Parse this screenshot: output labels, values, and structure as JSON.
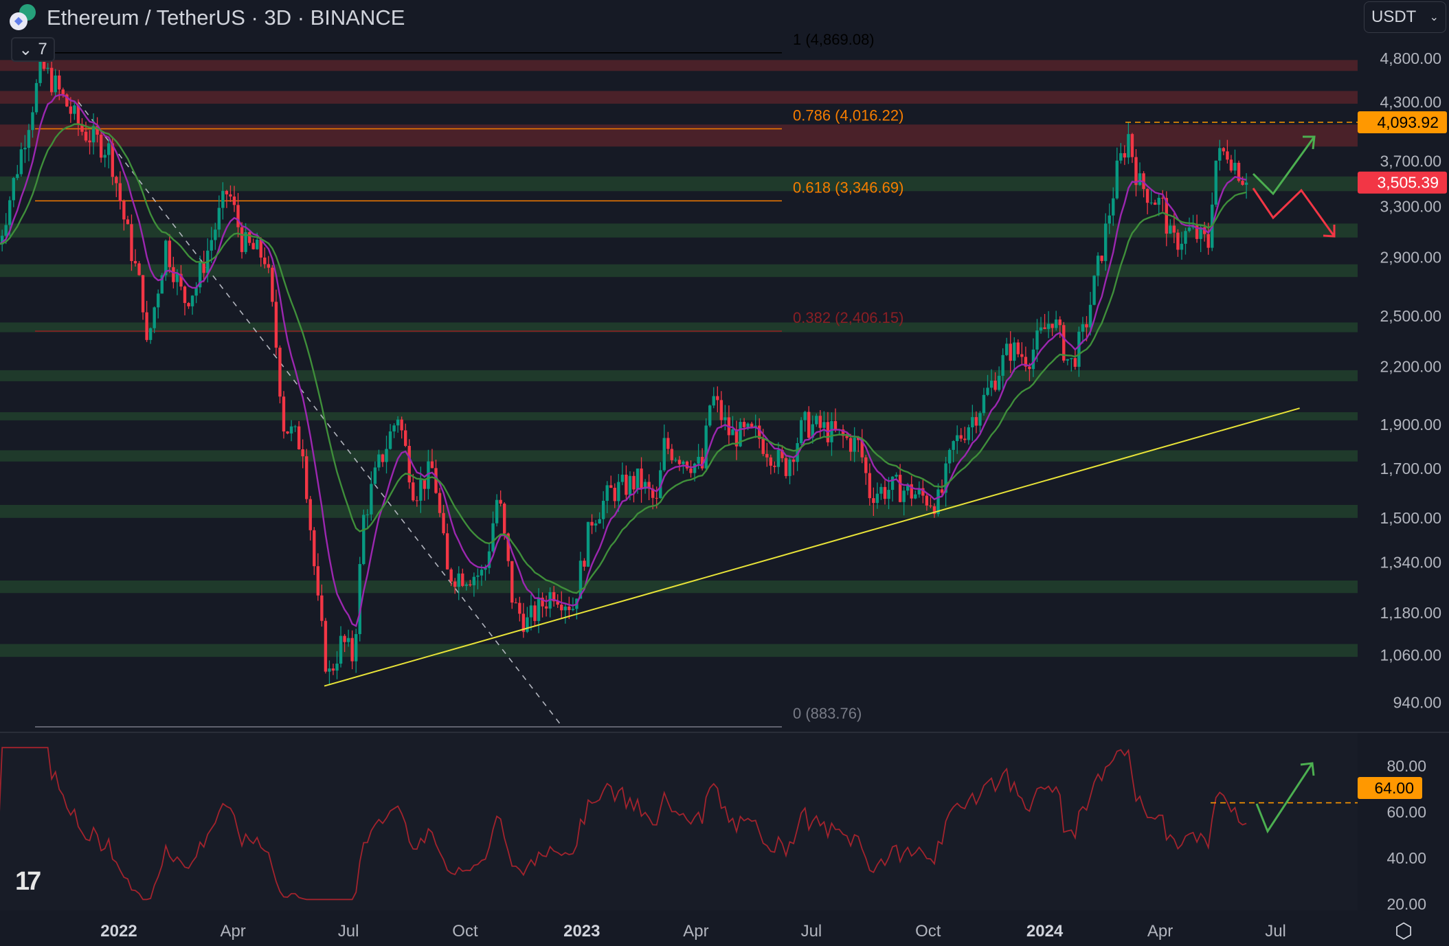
{
  "header": {
    "title": "Ethereum / TetherUS · 3D · BINANCE",
    "collapse_count": "7",
    "currency": "USDT"
  },
  "colors": {
    "background": "#161a25",
    "up": "#089981",
    "down": "#f23645",
    "ema_fast": "#9c27b0",
    "ema_slow": "#3f8f3a",
    "rsi": "#a3232d",
    "resistance_zone": "#4a2129",
    "support_zone": "#1f3a2b",
    "trendline": "#e8e338",
    "fib_786": "#f57c00",
    "fib_618": "#f57c00"
  },
  "chart_data": {
    "type": "candlestick",
    "title": "Ethereum / TetherUS · 3D · BINANCE",
    "scale": "log",
    "y_ticks": [
      "4,800.00",
      "4,300.00",
      "3,700.00",
      "3,300.00",
      "2,900.00",
      "2,500.00",
      "2,200.00",
      "1,900.00",
      "1,700.00",
      "1,500.00",
      "1,340.00",
      "1,180.00",
      "1,060.00",
      "940.00"
    ],
    "y_tick_values": [
      4800,
      4300,
      3700,
      3300,
      2900,
      2500,
      2200,
      1900,
      1700,
      1500,
      1340,
      1180,
      1060,
      940
    ],
    "x_ticks": [
      {
        "label": "2022",
        "date": "2022-01-01",
        "bold": true
      },
      {
        "label": "Apr",
        "date": "2022-04-01"
      },
      {
        "label": "Jul",
        "date": "2022-07-01"
      },
      {
        "label": "Oct",
        "date": "2022-10-01"
      },
      {
        "label": "2023",
        "date": "2023-01-01",
        "bold": true
      },
      {
        "label": "Apr",
        "date": "2023-04-01"
      },
      {
        "label": "Jul",
        "date": "2023-07-01"
      },
      {
        "label": "Oct",
        "date": "2023-10-01"
      },
      {
        "label": "2024",
        "date": "2024-01-01",
        "bold": true
      },
      {
        "label": "Apr",
        "date": "2024-04-01"
      },
      {
        "label": "Jul",
        "date": "2024-07-01"
      }
    ],
    "approx_closes": [
      [
        "2021-09-28",
        3000
      ],
      [
        "2021-10-12",
        3600
      ],
      [
        "2021-11-01",
        4700
      ],
      [
        "2021-11-11",
        4500
      ],
      [
        "2021-12-03",
        4000
      ],
      [
        "2021-12-25",
        3800
      ],
      [
        "2022-01-05",
        3200
      ],
      [
        "2022-01-20",
        2600
      ],
      [
        "2022-01-23",
        2300
      ],
      [
        "2022-02-07",
        3000
      ],
      [
        "2022-02-21",
        2600
      ],
      [
        "2022-03-03",
        2700
      ],
      [
        "2022-03-17",
        3100
      ],
      [
        "2022-03-28",
        3450
      ],
      [
        "2022-04-09",
        3000
      ],
      [
        "2022-04-27",
        2900
      ],
      [
        "2022-05-04",
        2400
      ],
      [
        "2022-05-11",
        1900
      ],
      [
        "2022-05-26",
        1800
      ],
      [
        "2022-06-07",
        1200
      ],
      [
        "2022-06-15",
        1000
      ],
      [
        "2022-06-26",
        1100
      ],
      [
        "2022-07-05",
        1050
      ],
      [
        "2022-07-13",
        1500
      ],
      [
        "2022-07-24",
        1700
      ],
      [
        "2022-08-09",
        1950
      ],
      [
        "2022-08-22",
        1600
      ],
      [
        "2022-09-06",
        1700
      ],
      [
        "2022-09-17",
        1300
      ],
      [
        "2022-10-05",
        1300
      ],
      [
        "2022-10-16",
        1300
      ],
      [
        "2022-10-27",
        1600
      ],
      [
        "2022-11-08",
        1200
      ],
      [
        "2022-11-19",
        1150
      ],
      [
        "2022-12-10",
        1250
      ],
      [
        "2022-12-25",
        1200
      ],
      [
        "2023-01-09",
        1500
      ],
      [
        "2023-01-24",
        1600
      ],
      [
        "2023-02-15",
        1650
      ],
      [
        "2023-03-01",
        1550
      ],
      [
        "2023-03-07",
        1800
      ],
      [
        "2023-04-06",
        1700
      ],
      [
        "2023-04-13",
        2050
      ],
      [
        "2023-04-28",
        1850
      ],
      [
        "2023-05-19",
        1850
      ],
      [
        "2023-06-10",
        1700
      ],
      [
        "2023-06-25",
        1900
      ],
      [
        "2023-07-10",
        1880
      ],
      [
        "2023-08-08",
        1800
      ],
      [
        "2023-08-16",
        1600
      ],
      [
        "2023-09-07",
        1620
      ],
      [
        "2023-09-28",
        1580
      ],
      [
        "2023-10-10",
        1560
      ],
      [
        "2023-10-21",
        1800
      ],
      [
        "2023-11-12",
        2000
      ],
      [
        "2023-12-04",
        2300
      ],
      [
        "2023-12-19",
        2250
      ],
      [
        "2024-01-07",
        2500
      ],
      [
        "2024-01-21",
        2200
      ],
      [
        "2024-02-01",
        2400
      ],
      [
        "2024-02-16",
        3000
      ],
      [
        "2024-02-27",
        3600
      ],
      [
        "2024-03-07",
        3950
      ],
      [
        "2024-03-15",
        3500
      ],
      [
        "2024-04-03",
        3300
      ],
      [
        "2024-04-10",
        3000
      ],
      [
        "2024-04-25",
        3100
      ],
      [
        "2024-05-09",
        3000
      ],
      [
        "2024-05-14",
        3700
      ],
      [
        "2024-05-24",
        3800
      ],
      [
        "2024-06-08",
        3505.39
      ]
    ],
    "last_price": "3,505.39",
    "marked_high": "4,093.92",
    "fib_levels": [
      {
        "label": "1 (4,869.08)",
        "price": 4869.08,
        "color": "#000000"
      },
      {
        "label": "0.786 (4,016.22)",
        "price": 4016.22,
        "color": "#f57c00"
      },
      {
        "label": "0.618 (3,346.69)",
        "price": 3346.69,
        "color": "#f57c00"
      },
      {
        "label": "0.382 (2,406.15)",
        "price": 2406.15,
        "color": "#8a1f24"
      },
      {
        "label": "0 (883.76)",
        "price": 883.76,
        "color": "#787b86"
      }
    ],
    "resistance_zones": [
      [
        4650,
        4780
      ],
      [
        4280,
        4420
      ],
      [
        3840,
        4060
      ]
    ],
    "support_zones": [
      [
        3430,
        3560
      ],
      [
        3050,
        3160
      ],
      [
        2760,
        2850
      ],
      [
        2400,
        2460
      ],
      [
        2120,
        2180
      ],
      [
        1920,
        1960
      ],
      [
        1730,
        1780
      ],
      [
        1500,
        1550
      ],
      [
        1240,
        1280
      ],
      [
        1055,
        1090
      ]
    ],
    "trendline": [
      [
        "2022-06-12",
        980
      ],
      [
        "2024-07-20",
        1980
      ]
    ],
    "downtrend": [
      [
        "2021-11-30",
        4300
      ],
      [
        "2022-12-15",
        890
      ]
    ],
    "projection_up": [
      [
        3560
      ],
      [
        3420
      ],
      [
        3980
      ]
    ],
    "rsi": {
      "label_marker": "64.00",
      "ticks": [
        "80.00",
        "60.00",
        "40.00",
        "20.00"
      ],
      "tick_values": [
        80,
        60,
        40,
        20
      ],
      "range": [
        12,
        92
      ]
    }
  },
  "footer": {
    "settings": "settings"
  }
}
